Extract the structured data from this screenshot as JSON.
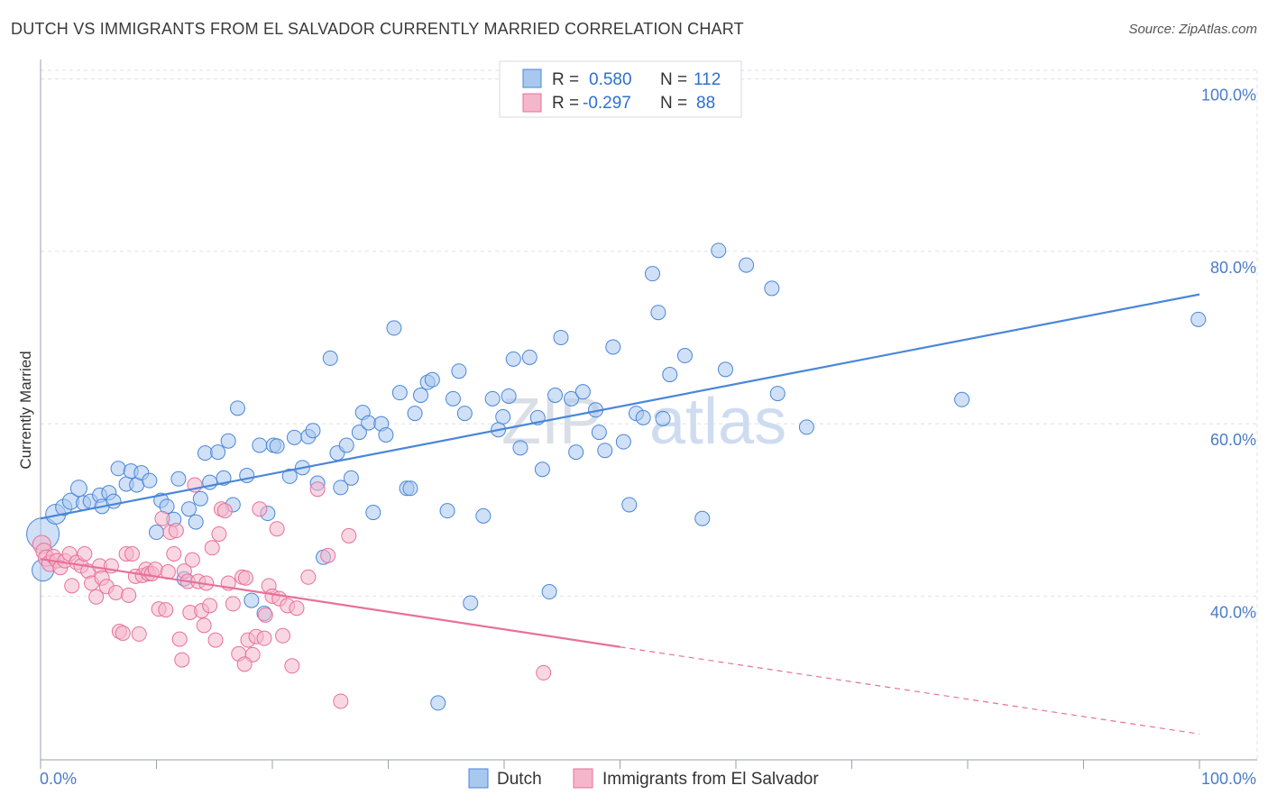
{
  "title": "DUTCH VS IMMIGRANTS FROM EL SALVADOR CURRENTLY MARRIED CORRELATION CHART",
  "source": "Source: ZipAtlas.com",
  "watermark": {
    "part1": "ZIP",
    "part2": "atlas"
  },
  "colors": {
    "dutch": "#4a86d8",
    "dutch_fill": "#a9c8f0",
    "salvador": "#e8709a",
    "salvador_fill": "#f4b6cb",
    "grid": "#dde1e8",
    "tick_text": "#4a7cc9"
  },
  "chart_data": {
    "type": "scatter",
    "ylabel": "Currently Married",
    "xlim": [
      0,
      100
    ],
    "ylim": [
      21,
      101
    ],
    "x_tick_labels": [
      "0.0%",
      "100.0%"
    ],
    "y_ticks": [
      40,
      60,
      80,
      100
    ],
    "y_tick_labels": [
      "40.0%",
      "60.0%",
      "80.0%",
      "100.0%"
    ],
    "grid": true,
    "legend_position": "top-center",
    "stats": [
      {
        "series": "Dutch",
        "r_label": "R =",
        "r": "0.580",
        "n_label": "N =",
        "n": "112"
      },
      {
        "series": "Immigrants from El Salvador",
        "r_label": "R =",
        "r": "-0.297",
        "n_label": "N =",
        "n": "88"
      }
    ],
    "series": [
      {
        "name": "Dutch",
        "color": "#4a86d8",
        "trend": {
          "x0": 0,
          "y0": 49.0,
          "x1": 100,
          "y1": 75.0
        },
        "points": [
          [
            0.2,
            47.2,
            18
          ],
          [
            0.2,
            43,
            12
          ],
          [
            1.3,
            49.5,
            11
          ],
          [
            2,
            50.3,
            9
          ],
          [
            2.6,
            51,
            9
          ],
          [
            3.3,
            52.5,
            9
          ],
          [
            3.7,
            50.8,
            8
          ],
          [
            4.3,
            51,
            8
          ],
          [
            5.1,
            51.7,
            8
          ],
          [
            5.3,
            50.4,
            8
          ],
          [
            5.9,
            52,
            8
          ],
          [
            6.3,
            51,
            8
          ],
          [
            6.7,
            54.8,
            8
          ],
          [
            7.4,
            53,
            8
          ],
          [
            7.8,
            54.5,
            8
          ],
          [
            8.3,
            52.9,
            8
          ],
          [
            8.7,
            54.3,
            8
          ],
          [
            9.4,
            53.4,
            8
          ],
          [
            10,
            47.4,
            8
          ],
          [
            10.4,
            51.1,
            8
          ],
          [
            10.9,
            50.4,
            8
          ],
          [
            11.5,
            48.9,
            8
          ],
          [
            11.9,
            53.6,
            8
          ],
          [
            12.4,
            42,
            8
          ],
          [
            12.8,
            50.1,
            8
          ],
          [
            13.4,
            48.6,
            8
          ],
          [
            13.8,
            51.3,
            8
          ],
          [
            14.2,
            56.6,
            8
          ],
          [
            14.6,
            53.2,
            8
          ],
          [
            15.3,
            56.7,
            8
          ],
          [
            15.8,
            53.7,
            8
          ],
          [
            16.2,
            58,
            8
          ],
          [
            16.6,
            50.6,
            8
          ],
          [
            17,
            61.8,
            8
          ],
          [
            17.8,
            54,
            8
          ],
          [
            18.2,
            39.5,
            8
          ],
          [
            18.9,
            57.5,
            8
          ],
          [
            19.3,
            38,
            8
          ],
          [
            19.6,
            49.6,
            8
          ],
          [
            20.1,
            57.5,
            8
          ],
          [
            20.4,
            57.4,
            8
          ],
          [
            21.5,
            53.9,
            8
          ],
          [
            21.9,
            58.4,
            8
          ],
          [
            22.6,
            54.9,
            8
          ],
          [
            23.1,
            58.5,
            8
          ],
          [
            23.5,
            59.2,
            8
          ],
          [
            23.9,
            53.1,
            8
          ],
          [
            24.4,
            44.5,
            8
          ],
          [
            25,
            67.6,
            8
          ],
          [
            25.6,
            56.6,
            8
          ],
          [
            25.9,
            52.6,
            8
          ],
          [
            26.4,
            57.5,
            8
          ],
          [
            26.8,
            53.7,
            8
          ],
          [
            27.5,
            59,
            8
          ],
          [
            27.8,
            61.3,
            8
          ],
          [
            28.3,
            60.1,
            8
          ],
          [
            28.7,
            49.7,
            8
          ],
          [
            29.4,
            60,
            8
          ],
          [
            29.8,
            58.7,
            8
          ],
          [
            30.5,
            71.1,
            8
          ],
          [
            31,
            63.6,
            8
          ],
          [
            31.6,
            52.5,
            8
          ],
          [
            31.9,
            52.5,
            8
          ],
          [
            32.3,
            61.2,
            8
          ],
          [
            32.8,
            63.3,
            8
          ],
          [
            33.4,
            64.8,
            8
          ],
          [
            33.8,
            65.1,
            8
          ],
          [
            34.3,
            27.6,
            8
          ],
          [
            35.1,
            49.9,
            8
          ],
          [
            35.6,
            62.9,
            8
          ],
          [
            36.1,
            66.1,
            8
          ],
          [
            36.6,
            61.2,
            8
          ],
          [
            37.1,
            39.2,
            8
          ],
          [
            38.2,
            49.3,
            8
          ],
          [
            39,
            62.9,
            8
          ],
          [
            39.5,
            59.3,
            8
          ],
          [
            39.9,
            60.8,
            8
          ],
          [
            40.4,
            63.2,
            8
          ],
          [
            40.8,
            67.5,
            8
          ],
          [
            41.4,
            57.2,
            8
          ],
          [
            42.2,
            67.7,
            8
          ],
          [
            42.9,
            60.7,
            8
          ],
          [
            43.3,
            54.7,
            8
          ],
          [
            43.9,
            40.5,
            8
          ],
          [
            44.4,
            63.3,
            8
          ],
          [
            44.9,
            70,
            8
          ],
          [
            45.8,
            62.9,
            8
          ],
          [
            46.2,
            56.7,
            8
          ],
          [
            46.8,
            63.7,
            8
          ],
          [
            47.9,
            61.6,
            8
          ],
          [
            48.2,
            59,
            8
          ],
          [
            48.7,
            56.9,
            8
          ],
          [
            49.4,
            68.9,
            8
          ],
          [
            50.3,
            57.9,
            8
          ],
          [
            50.8,
            50.6,
            8
          ],
          [
            51.4,
            61.2,
            8
          ],
          [
            52,
            60.7,
            8
          ],
          [
            52.8,
            77.4,
            8
          ],
          [
            53.3,
            72.9,
            8
          ],
          [
            53.7,
            60.6,
            8
          ],
          [
            54.3,
            65.7,
            8
          ],
          [
            55.6,
            67.9,
            8
          ],
          [
            57.1,
            49,
            8
          ],
          [
            58.5,
            80.1,
            8
          ],
          [
            59.1,
            66.3,
            8
          ],
          [
            60.9,
            78.4,
            8
          ],
          [
            63.1,
            75.7,
            8
          ],
          [
            63.6,
            63.5,
            8
          ],
          [
            66.1,
            59.6,
            8
          ],
          [
            79.5,
            62.8,
            8
          ],
          [
            99.9,
            72.1,
            8
          ],
          [
            56,
            52,
            0
          ]
        ]
      },
      {
        "name": "Immigrants from El Salvador",
        "color": "#e8709a",
        "trend": {
          "x0": 0,
          "y0": 44.3,
          "x1": 50,
          "y1": 34.1,
          "dash_to_x": 100,
          "dash_to_y": 24.0
        },
        "points": [
          [
            0.1,
            46,
            10
          ],
          [
            0.3,
            45.2,
            9
          ],
          [
            0.5,
            44.4,
            9
          ],
          [
            0.8,
            43.8,
            9
          ],
          [
            1.1,
            44.6,
            8
          ],
          [
            1.4,
            44.1,
            8
          ],
          [
            1.7,
            43.3,
            8
          ],
          [
            2.1,
            44.1,
            8
          ],
          [
            2.5,
            44.9,
            8
          ],
          [
            2.7,
            41.2,
            8
          ],
          [
            3.1,
            43.9,
            8
          ],
          [
            3.5,
            43.5,
            8
          ],
          [
            3.8,
            44.9,
            8
          ],
          [
            4.1,
            42.9,
            8
          ],
          [
            4.4,
            41.5,
            8
          ],
          [
            4.8,
            39.9,
            8
          ],
          [
            5.1,
            43.5,
            8
          ],
          [
            5.3,
            42.1,
            8
          ],
          [
            5.7,
            41.1,
            8
          ],
          [
            6.1,
            43.5,
            8
          ],
          [
            6.5,
            40.4,
            8
          ],
          [
            6.8,
            35.9,
            8
          ],
          [
            7.1,
            35.7,
            8
          ],
          [
            7.4,
            44.9,
            8
          ],
          [
            7.6,
            40.1,
            8
          ],
          [
            7.9,
            44.9,
            8
          ],
          [
            8.2,
            42.3,
            8
          ],
          [
            8.5,
            35.6,
            8
          ],
          [
            8.8,
            42.4,
            8
          ],
          [
            9.1,
            43.1,
            8
          ],
          [
            9.3,
            42.6,
            8
          ],
          [
            9.6,
            42.6,
            8
          ],
          [
            9.9,
            43.1,
            8
          ],
          [
            10.2,
            38.5,
            8
          ],
          [
            10.5,
            49,
            8
          ],
          [
            10.8,
            38.4,
            8
          ],
          [
            11,
            42.8,
            8
          ],
          [
            11.2,
            47.4,
            8
          ],
          [
            11.5,
            44.9,
            8
          ],
          [
            11.7,
            47.6,
            8
          ],
          [
            12,
            35,
            8
          ],
          [
            12.2,
            32.6,
            8
          ],
          [
            12.4,
            42.9,
            8
          ],
          [
            12.7,
            41.7,
            8
          ],
          [
            12.9,
            38.1,
            8
          ],
          [
            13.1,
            44.2,
            8
          ],
          [
            13.3,
            52.9,
            8
          ],
          [
            13.6,
            41.7,
            8
          ],
          [
            13.9,
            38.3,
            8
          ],
          [
            14.1,
            36.6,
            8
          ],
          [
            14.3,
            41.5,
            8
          ],
          [
            14.6,
            38.9,
            8
          ],
          [
            14.8,
            45.6,
            8
          ],
          [
            15.1,
            34.9,
            8
          ],
          [
            15.4,
            47.2,
            8
          ],
          [
            15.6,
            50.1,
            8
          ],
          [
            15.9,
            49.9,
            8
          ],
          [
            16.2,
            41.5,
            8
          ],
          [
            16.6,
            39.1,
            8
          ],
          [
            17.1,
            33.3,
            8
          ],
          [
            17.4,
            42.2,
            8
          ],
          [
            17.7,
            42.1,
            8
          ],
          [
            17.9,
            34.9,
            8
          ],
          [
            18.3,
            33.2,
            8
          ],
          [
            18.6,
            35.3,
            8
          ],
          [
            18.9,
            50.1,
            8
          ],
          [
            19.3,
            35.1,
            8
          ],
          [
            19.7,
            41.2,
            8
          ],
          [
            20,
            40,
            8
          ],
          [
            20.4,
            47.8,
            8
          ],
          [
            20.6,
            39.7,
            8
          ],
          [
            20.9,
            35.4,
            8
          ],
          [
            21.3,
            38.9,
            8
          ],
          [
            21.7,
            31.9,
            8
          ],
          [
            22.1,
            38.6,
            8
          ],
          [
            17.6,
            32.1,
            8
          ],
          [
            23.1,
            42.2,
            8
          ],
          [
            23.9,
            52.4,
            8
          ],
          [
            24.8,
            44.7,
            8
          ],
          [
            25.9,
            27.8,
            8
          ],
          [
            19.4,
            37.8,
            8
          ],
          [
            26.6,
            47,
            8
          ],
          [
            43.4,
            31.1,
            8
          ],
          [
            44.4,
            46.9,
            0
          ],
          [
            9.5,
            39.5,
            0
          ],
          [
            10.4,
            40.6,
            0
          ],
          [
            11.6,
            37.5,
            0
          ],
          [
            13.2,
            34.6,
            0
          ]
        ]
      }
    ]
  },
  "legend": {
    "dutch": "Dutch",
    "salvador": "Immigrants from El Salvador"
  }
}
